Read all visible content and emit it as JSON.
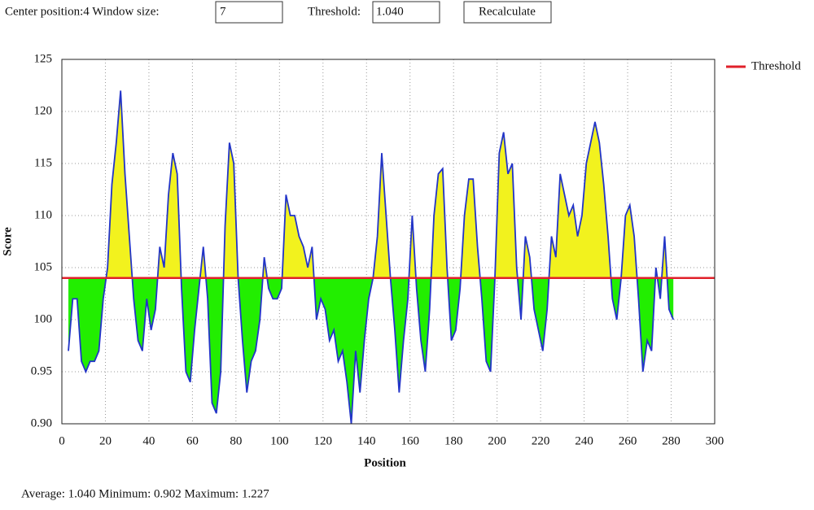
{
  "controls": {
    "center_label": "Center position:4 Window size:",
    "window_size": "7",
    "threshold_label": "Threshold:",
    "button": "Recalculate"
  },
  "chart_data": {
    "type": "line",
    "x_label": "Position",
    "y_label": "Score",
    "xlim": [
      0,
      300
    ],
    "xticks": [
      0,
      20,
      40,
      60,
      80,
      100,
      120,
      140,
      160,
      180,
      200,
      220,
      240,
      260,
      280,
      300
    ],
    "ylim": [
      0.9,
      1.25
    ],
    "yticks": [
      {
        "value": 0.9,
        "label": "0.90"
      },
      0.95,
      {
        "value": 1.0,
        "label": "100"
      },
      {
        "value": 1.05,
        "label": "105"
      },
      {
        "value": 1.1,
        "label": "110"
      },
      {
        "value": 1.15,
        "label": "115"
      },
      {
        "value": 1.2,
        "label": "120"
      },
      {
        "value": 1.25,
        "label": "125"
      }
    ],
    "grid": true,
    "threshold": {
      "name": "Threshold",
      "value": 1.04,
      "label": "1.040",
      "color": "#e0202a"
    },
    "above_color": "#f2f21e",
    "below_color": "#22ee00",
    "x": [
      3,
      5,
      7,
      9,
      11,
      13,
      15,
      17,
      19,
      21,
      23,
      25,
      27,
      29,
      31,
      33,
      35,
      37,
      39,
      41,
      43,
      45,
      47,
      49,
      51,
      53,
      55,
      57,
      59,
      61,
      63,
      65,
      67,
      69,
      71,
      73,
      75,
      77,
      79,
      81,
      83,
      85,
      87,
      89,
      91,
      93,
      95,
      97,
      99,
      101,
      103,
      105,
      107,
      109,
      111,
      113,
      115,
      117,
      119,
      121,
      123,
      125,
      127,
      129,
      131,
      133,
      135,
      137,
      139,
      141,
      143,
      145,
      147,
      149,
      151,
      153,
      155,
      157,
      159,
      161,
      163,
      165,
      167,
      169,
      171,
      173,
      175,
      177,
      179,
      181,
      183,
      185,
      187,
      189,
      191,
      193,
      195,
      197,
      199,
      201,
      203,
      205,
      207,
      209,
      211,
      213,
      215,
      217,
      219,
      221,
      223,
      225,
      227,
      229,
      231,
      233,
      235,
      237,
      239,
      241,
      243,
      245,
      247,
      249,
      251,
      253,
      255,
      257,
      259,
      261,
      263,
      265,
      267,
      269,
      271,
      273,
      275,
      277,
      279,
      281
    ],
    "series": [
      {
        "name": "Score",
        "color": "#2234c8",
        "values": [
          0.97,
          1.02,
          1.02,
          0.96,
          0.95,
          0.96,
          0.96,
          0.97,
          1.02,
          1.05,
          1.13,
          1.17,
          1.22,
          1.14,
          1.08,
          1.02,
          0.98,
          0.97,
          1.02,
          0.99,
          1.01,
          1.07,
          1.05,
          1.12,
          1.16,
          1.14,
          1.03,
          0.95,
          0.94,
          0.99,
          1.03,
          1.07,
          1.02,
          0.92,
          0.91,
          0.95,
          1.09,
          1.17,
          1.15,
          1.04,
          0.98,
          0.93,
          0.96,
          0.97,
          1.0,
          1.06,
          1.03,
          1.02,
          1.02,
          1.03,
          1.12,
          1.1,
          1.1,
          1.08,
          1.07,
          1.05,
          1.07,
          1.0,
          1.02,
          1.01,
          0.98,
          0.99,
          0.96,
          0.97,
          0.94,
          0.9,
          0.97,
          0.93,
          0.98,
          1.02,
          1.04,
          1.08,
          1.16,
          1.1,
          1.04,
          0.99,
          0.93,
          0.98,
          1.02,
          1.1,
          1.03,
          0.98,
          0.95,
          1.01,
          1.1,
          1.14,
          1.145,
          1.05,
          0.98,
          0.99,
          1.03,
          1.1,
          1.135,
          1.135,
          1.07,
          1.02,
          0.96,
          0.95,
          1.04,
          1.16,
          1.18,
          1.14,
          1.15,
          1.05,
          1.0,
          1.08,
          1.06,
          1.01,
          0.99,
          0.97,
          1.01,
          1.08,
          1.06,
          1.14,
          1.12,
          1.1,
          1.11,
          1.08,
          1.1,
          1.15,
          1.17,
          1.19,
          1.17,
          1.13,
          1.08,
          1.02,
          1.0,
          1.04,
          1.1,
          1.11,
          1.08,
          1.02,
          0.95,
          0.98,
          0.97,
          1.05,
          1.02,
          1.08,
          1.01,
          1.0
        ]
      }
    ]
  },
  "footer": "Average: 1.040 Minimum: 0.902 Maximum: 1.227"
}
